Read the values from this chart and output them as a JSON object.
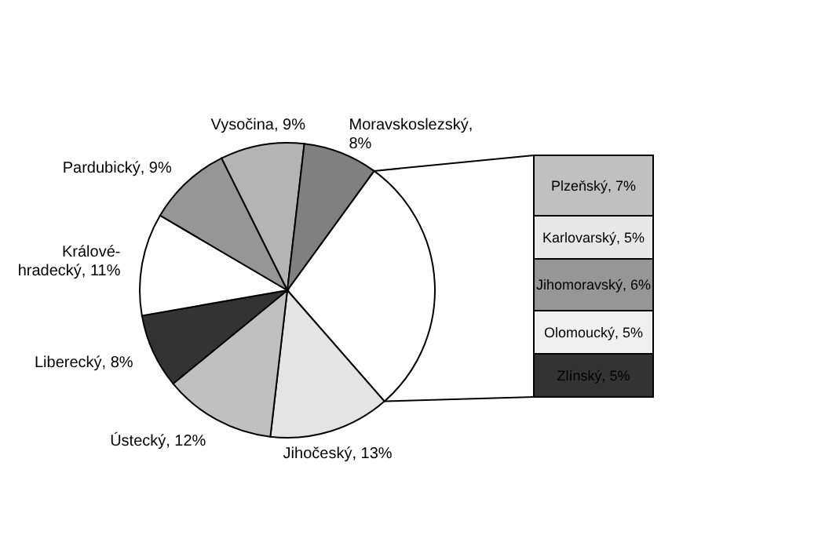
{
  "chart_data": [
    {
      "type": "pie",
      "categories": [
        null,
        "Jihočeský, 13%",
        "Ústecký, 12%",
        "Liberecký, 8%",
        "Králové-hradecký, 11%",
        "Pardubický, 9%",
        "Vysočina, 9%",
        "Moravskoslezský, 8%"
      ],
      "values": [
        28,
        13,
        12,
        8,
        11,
        9,
        9,
        8
      ],
      "colors": [
        "#ffffff",
        "#e4e4e4",
        "#c0c0c0",
        "#333333",
        "#ffffff",
        "#969696",
        "#b4b4b4",
        "#808080"
      ]
    },
    {
      "type": "bar",
      "stacked": true,
      "categories": [
        null
      ],
      "series": [
        {
          "color": "#333333",
          "values": [
            5
          ],
          "value_labels": [
            "Zlínský, 5%"
          ]
        },
        {
          "color": "#f0f0f0",
          "values": [
            5
          ],
          "value_labels": [
            "Olomoucký, 5%"
          ]
        },
        {
          "color": "#969696",
          "values": [
            6
          ],
          "value_labels": [
            "Jihomoravský, 6%"
          ]
        },
        {
          "color": "#e8e8e8",
          "values": [
            5
          ],
          "value_labels": [
            "Karlovarský, 5%"
          ]
        },
        {
          "color": "#c0c0c0",
          "values": [
            7
          ],
          "value_labels": [
            "Plzeňský, 7%"
          ]
        }
      ]
    }
  ]
}
